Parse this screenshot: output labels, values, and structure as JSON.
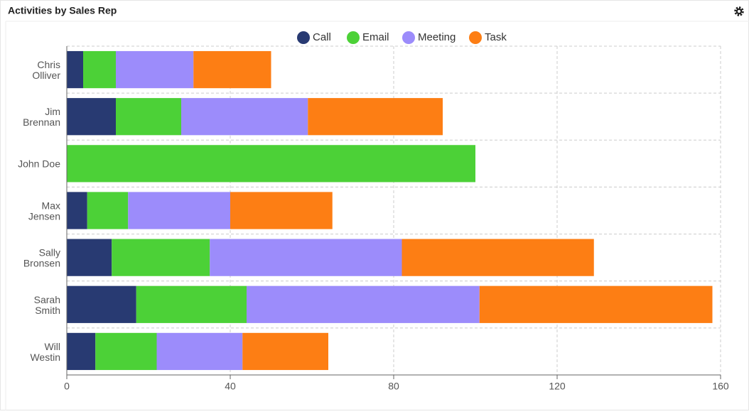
{
  "chart_data": {
    "type": "stacked-bar-horizontal",
    "title": "Activities by Sales Rep",
    "categories": [
      "Chris Olliver",
      "Jim Brennan",
      "John Doe",
      "Max Jensen",
      "Sally Bronsen",
      "Sarah Smith",
      "Will Westin"
    ],
    "series": [
      {
        "name": "Call",
        "color": "#283a72",
        "values": [
          4,
          12,
          0,
          5,
          11,
          17,
          7
        ]
      },
      {
        "name": "Email",
        "color": "#4cd137",
        "values": [
          8,
          16,
          100,
          10,
          24,
          27,
          15
        ]
      },
      {
        "name": "Meeting",
        "color": "#9c8cfb",
        "values": [
          19,
          31,
          0,
          25,
          47,
          57,
          21
        ]
      },
      {
        "name": "Task",
        "color": "#fd7e14",
        "values": [
          19,
          33,
          0,
          25,
          47,
          57,
          21
        ]
      }
    ],
    "xlim": [
      0,
      160
    ],
    "xticks": [
      0,
      40,
      80,
      120,
      160
    ],
    "grid": true,
    "legend": "top"
  }
}
